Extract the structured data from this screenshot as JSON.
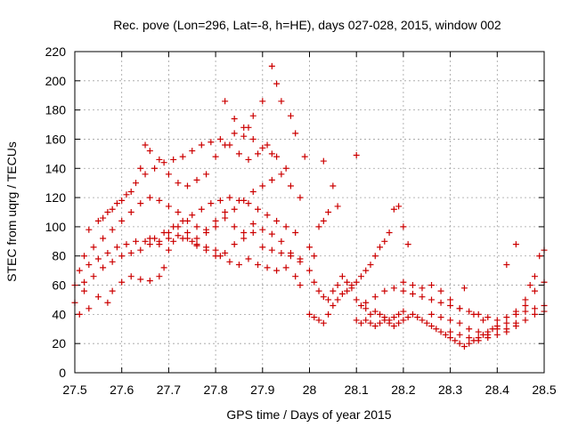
{
  "chart_data": {
    "type": "scatter",
    "title": "Rec. pove (Lon=296, Lat=-8, h=HE), days 027-028, 2015, window 002",
    "xlabel": "GPS time / Days of year 2015",
    "ylabel": "STEC from uqrg / TECUs",
    "xlim": [
      27.5,
      28.5
    ],
    "ylim": [
      0,
      220
    ],
    "xticks": [
      27.5,
      27.6,
      27.7,
      27.8,
      27.9,
      28.0,
      28.1,
      28.2,
      28.3,
      28.4,
      28.5
    ],
    "xtick_labels": [
      "27.5",
      "27.6",
      "27.7",
      "27.8",
      "27.9",
      "28",
      "28.1",
      "28.2",
      "28.3",
      "28.4",
      "28.5"
    ],
    "yticks": [
      0,
      20,
      40,
      60,
      80,
      100,
      120,
      140,
      160,
      180,
      200,
      220
    ],
    "ytick_labels": [
      "0",
      "20",
      "40",
      "60",
      "80",
      "100",
      "120",
      "140",
      "160",
      "180",
      "200",
      "220"
    ],
    "grid": true,
    "marker": "plus",
    "marker_color": "#cc0000",
    "points": [
      [
        27.5,
        48
      ],
      [
        27.51,
        40
      ],
      [
        27.52,
        56
      ],
      [
        27.53,
        44
      ],
      [
        27.55,
        52
      ],
      [
        27.57,
        48
      ],
      [
        27.58,
        56
      ],
      [
        27.6,
        62
      ],
      [
        27.62,
        66
      ],
      [
        27.64,
        64
      ],
      [
        27.66,
        63
      ],
      [
        27.68,
        66
      ],
      [
        27.69,
        72
      ],
      [
        27.7,
        84
      ],
      [
        27.71,
        90
      ],
      [
        27.73,
        92
      ],
      [
        27.75,
        90
      ],
      [
        27.76,
        87
      ],
      [
        27.78,
        86
      ],
      [
        27.8,
        84
      ],
      [
        27.81,
        80
      ],
      [
        27.83,
        76
      ],
      [
        27.85,
        74
      ],
      [
        27.87,
        78
      ],
      [
        27.89,
        74
      ],
      [
        27.91,
        72
      ],
      [
        27.93,
        70
      ],
      [
        27.95,
        72
      ],
      [
        27.97,
        66
      ],
      [
        27.98,
        60
      ],
      [
        27.5,
        60
      ],
      [
        27.52,
        62
      ],
      [
        27.54,
        66
      ],
      [
        27.56,
        72
      ],
      [
        27.58,
        76
      ],
      [
        27.6,
        80
      ],
      [
        27.62,
        82
      ],
      [
        27.64,
        84
      ],
      [
        27.66,
        88
      ],
      [
        27.68,
        90
      ],
      [
        27.7,
        92
      ],
      [
        27.72,
        94
      ],
      [
        27.74,
        92
      ],
      [
        27.76,
        88
      ],
      [
        27.78,
        84
      ],
      [
        27.8,
        80
      ],
      [
        27.82,
        82
      ],
      [
        27.84,
        88
      ],
      [
        27.86,
        92
      ],
      [
        27.88,
        96
      ],
      [
        27.9,
        98
      ],
      [
        27.92,
        95
      ],
      [
        27.94,
        90
      ],
      [
        27.96,
        82
      ],
      [
        27.98,
        76
      ],
      [
        27.51,
        70
      ],
      [
        27.53,
        74
      ],
      [
        27.55,
        78
      ],
      [
        27.57,
        82
      ],
      [
        27.59,
        86
      ],
      [
        27.61,
        88
      ],
      [
        27.63,
        90
      ],
      [
        27.65,
        90
      ],
      [
        27.67,
        92
      ],
      [
        27.69,
        96
      ],
      [
        27.71,
        100
      ],
      [
        27.73,
        104
      ],
      [
        27.75,
        108
      ],
      [
        27.77,
        112
      ],
      [
        27.79,
        116
      ],
      [
        27.81,
        118
      ],
      [
        27.83,
        120
      ],
      [
        27.85,
        118
      ],
      [
        27.87,
        116
      ],
      [
        27.89,
        112
      ],
      [
        27.91,
        108
      ],
      [
        27.93,
        104
      ],
      [
        27.95,
        100
      ],
      [
        27.97,
        96
      ],
      [
        27.52,
        80
      ],
      [
        27.54,
        86
      ],
      [
        27.56,
        92
      ],
      [
        27.58,
        98
      ],
      [
        27.6,
        104
      ],
      [
        27.62,
        110
      ],
      [
        27.64,
        116
      ],
      [
        27.66,
        120
      ],
      [
        27.68,
        118
      ],
      [
        27.7,
        114
      ],
      [
        27.72,
        110
      ],
      [
        27.74,
        104
      ],
      [
        27.76,
        100
      ],
      [
        27.78,
        96
      ],
      [
        27.8,
        100
      ],
      [
        27.82,
        106
      ],
      [
        27.84,
        112
      ],
      [
        27.86,
        118
      ],
      [
        27.88,
        124
      ],
      [
        27.9,
        128
      ],
      [
        27.92,
        132
      ],
      [
        27.94,
        136
      ],
      [
        27.96,
        128
      ],
      [
        27.98,
        120
      ],
      [
        27.53,
        98
      ],
      [
        27.55,
        104
      ],
      [
        27.57,
        110
      ],
      [
        27.59,
        116
      ],
      [
        27.61,
        122
      ],
      [
        27.63,
        130
      ],
      [
        27.65,
        136
      ],
      [
        27.67,
        140
      ],
      [
        27.69,
        144
      ],
      [
        27.71,
        146
      ],
      [
        27.73,
        148
      ],
      [
        27.75,
        152
      ],
      [
        27.77,
        156
      ],
      [
        27.79,
        158
      ],
      [
        27.81,
        160
      ],
      [
        27.83,
        156
      ],
      [
        27.85,
        150
      ],
      [
        27.87,
        146
      ],
      [
        27.89,
        150
      ],
      [
        27.91,
        156
      ],
      [
        27.93,
        148
      ],
      [
        27.95,
        140
      ],
      [
        27.56,
        106
      ],
      [
        27.58,
        112
      ],
      [
        27.6,
        118
      ],
      [
        27.62,
        124
      ],
      [
        27.64,
        140
      ],
      [
        27.65,
        156
      ],
      [
        27.66,
        152
      ],
      [
        27.68,
        146
      ],
      [
        27.7,
        136
      ],
      [
        27.72,
        130
      ],
      [
        27.74,
        128
      ],
      [
        27.76,
        132
      ],
      [
        27.78,
        136
      ],
      [
        27.8,
        148
      ],
      [
        27.82,
        156
      ],
      [
        27.84,
        164
      ],
      [
        27.86,
        168
      ],
      [
        27.88,
        160
      ],
      [
        27.9,
        154
      ],
      [
        27.92,
        150
      ],
      [
        27.82,
        186
      ],
      [
        27.84,
        174
      ],
      [
        27.86,
        162
      ],
      [
        27.87,
        168
      ],
      [
        27.88,
        176
      ],
      [
        27.9,
        186
      ],
      [
        27.92,
        210
      ],
      [
        27.93,
        198
      ],
      [
        27.94,
        186
      ],
      [
        27.96,
        176
      ],
      [
        27.97,
        164
      ],
      [
        27.99,
        148
      ],
      [
        27.66,
        92
      ],
      [
        27.68,
        88
      ],
      [
        27.7,
        96
      ],
      [
        27.72,
        100
      ],
      [
        27.74,
        96
      ],
      [
        27.76,
        92
      ],
      [
        27.78,
        98
      ],
      [
        27.8,
        104
      ],
      [
        27.82,
        110
      ],
      [
        27.84,
        100
      ],
      [
        27.86,
        96
      ],
      [
        27.88,
        102
      ],
      [
        27.9,
        86
      ],
      [
        27.92,
        84
      ],
      [
        27.94,
        82
      ],
      [
        27.96,
        80
      ],
      [
        27.98,
        78
      ],
      [
        28.0,
        86
      ],
      [
        28.01,
        80
      ],
      [
        28.02,
        100
      ],
      [
        28.03,
        104
      ],
      [
        28.04,
        110
      ],
      [
        28.05,
        128
      ],
      [
        28.06,
        114
      ],
      [
        28.03,
        145
      ],
      [
        28.1,
        149
      ],
      [
        28.0,
        70
      ],
      [
        28.01,
        62
      ],
      [
        28.02,
        56
      ],
      [
        28.03,
        52
      ],
      [
        28.04,
        50
      ],
      [
        28.05,
        56
      ],
      [
        28.06,
        60
      ],
      [
        28.07,
        66
      ],
      [
        28.08,
        62
      ],
      [
        28.09,
        58
      ],
      [
        28.1,
        50
      ],
      [
        28.11,
        46
      ],
      [
        28.12,
        44
      ],
      [
        28.13,
        40
      ],
      [
        28.14,
        42
      ],
      [
        28.15,
        40
      ],
      [
        28.16,
        38
      ],
      [
        28.17,
        36
      ],
      [
        28.18,
        38
      ],
      [
        28.19,
        40
      ],
      [
        28.2,
        42
      ],
      [
        28.0,
        40
      ],
      [
        28.01,
        38
      ],
      [
        28.02,
        36
      ],
      [
        28.03,
        34
      ],
      [
        28.04,
        40
      ],
      [
        28.05,
        46
      ],
      [
        28.06,
        50
      ],
      [
        28.07,
        54
      ],
      [
        28.08,
        56
      ],
      [
        28.09,
        60
      ],
      [
        28.1,
        62
      ],
      [
        28.11,
        66
      ],
      [
        28.12,
        70
      ],
      [
        28.13,
        74
      ],
      [
        28.14,
        80
      ],
      [
        28.15,
        86
      ],
      [
        28.16,
        90
      ],
      [
        28.17,
        96
      ],
      [
        28.18,
        112
      ],
      [
        28.19,
        114
      ],
      [
        28.2,
        100
      ],
      [
        28.21,
        88
      ],
      [
        28.1,
        36
      ],
      [
        28.11,
        34
      ],
      [
        28.12,
        36
      ],
      [
        28.13,
        34
      ],
      [
        28.14,
        32
      ],
      [
        28.15,
        34
      ],
      [
        28.16,
        36
      ],
      [
        28.17,
        34
      ],
      [
        28.18,
        32
      ],
      [
        28.19,
        34
      ],
      [
        28.2,
        36
      ],
      [
        28.21,
        38
      ],
      [
        28.22,
        40
      ],
      [
        28.23,
        38
      ],
      [
        28.24,
        36
      ],
      [
        28.25,
        34
      ],
      [
        28.26,
        32
      ],
      [
        28.27,
        30
      ],
      [
        28.28,
        28
      ],
      [
        28.29,
        26
      ],
      [
        28.3,
        24
      ],
      [
        28.31,
        22
      ],
      [
        28.32,
        20
      ],
      [
        28.33,
        18
      ],
      [
        28.34,
        20
      ],
      [
        28.35,
        22
      ],
      [
        28.36,
        24
      ],
      [
        28.37,
        26
      ],
      [
        28.38,
        28
      ],
      [
        28.39,
        30
      ],
      [
        28.12,
        48
      ],
      [
        28.14,
        52
      ],
      [
        28.16,
        56
      ],
      [
        28.18,
        58
      ],
      [
        28.2,
        56
      ],
      [
        28.22,
        54
      ],
      [
        28.24,
        52
      ],
      [
        28.26,
        50
      ],
      [
        28.28,
        48
      ],
      [
        28.3,
        46
      ],
      [
        28.32,
        44
      ],
      [
        28.34,
        42
      ],
      [
        28.36,
        40
      ],
      [
        28.38,
        38
      ],
      [
        28.4,
        36
      ],
      [
        28.42,
        38
      ],
      [
        28.44,
        40
      ],
      [
        28.46,
        42
      ],
      [
        28.48,
        44
      ],
      [
        28.5,
        46
      ],
      [
        28.2,
        62
      ],
      [
        28.22,
        60
      ],
      [
        28.24,
        58
      ],
      [
        28.26,
        60
      ],
      [
        28.28,
        56
      ],
      [
        28.3,
        50
      ],
      [
        28.32,
        44
      ],
      [
        28.33,
        58
      ],
      [
        28.35,
        40
      ],
      [
        28.37,
        36
      ],
      [
        28.4,
        32
      ],
      [
        28.42,
        30
      ],
      [
        28.44,
        34
      ],
      [
        28.46,
        50
      ],
      [
        28.47,
        60
      ],
      [
        28.48,
        66
      ],
      [
        28.49,
        80
      ],
      [
        28.5,
        84
      ],
      [
        28.44,
        88
      ],
      [
        28.42,
        74
      ],
      [
        28.26,
        40
      ],
      [
        28.28,
        38
      ],
      [
        28.3,
        36
      ],
      [
        28.32,
        34
      ],
      [
        28.34,
        30
      ],
      [
        28.36,
        28
      ],
      [
        28.38,
        26
      ],
      [
        28.4,
        26
      ],
      [
        28.42,
        28
      ],
      [
        28.44,
        32
      ],
      [
        28.46,
        36
      ],
      [
        28.48,
        40
      ],
      [
        28.5,
        42
      ],
      [
        28.3,
        28
      ],
      [
        28.32,
        26
      ],
      [
        28.34,
        24
      ],
      [
        28.36,
        22
      ],
      [
        28.38,
        24
      ],
      [
        28.4,
        30
      ],
      [
        28.42,
        34
      ],
      [
        28.44,
        42
      ],
      [
        28.46,
        46
      ],
      [
        28.48,
        56
      ],
      [
        28.5,
        62
      ]
    ]
  }
}
